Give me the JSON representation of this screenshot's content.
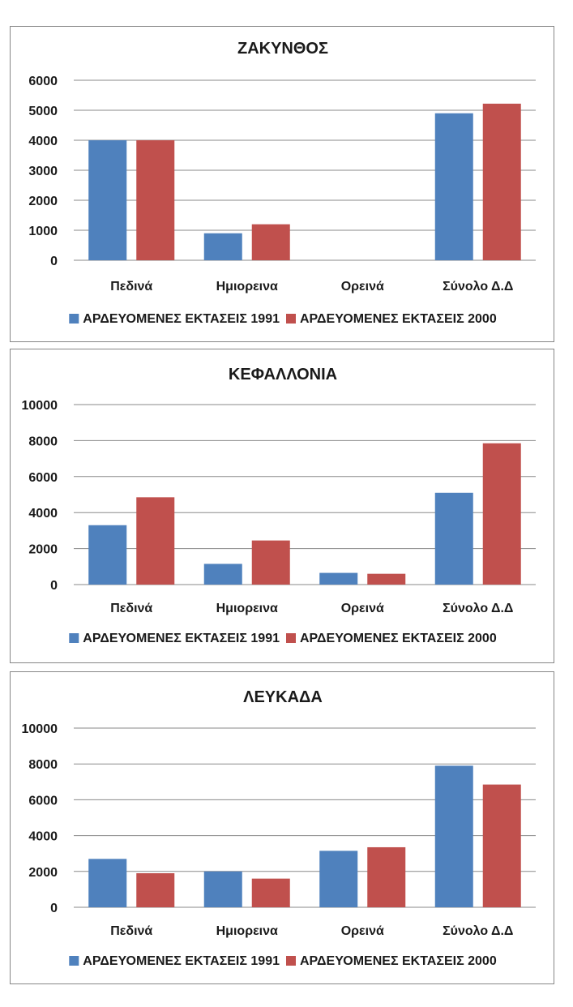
{
  "chart_data": [
    {
      "type": "bar",
      "title": "ΖΑΚΥΝΘΟΣ",
      "categories": [
        "Πεδινά",
        "Ημιορεινα",
        "Ορεινά",
        "Σύνολο Δ.Δ"
      ],
      "series": [
        {
          "name": "ΑΡΔΕΥΟΜΕΝΕΣ ΕΚΤΑΣΕΙΣ 1991",
          "color": "#4f81bd",
          "values": [
            4000,
            900,
            0,
            4900
          ]
        },
        {
          "name": "ΑΡΔΕΥΟΜΕΝΕΣ ΕΚΤΑΣΕΙΣ 2000",
          "color": "#c0504d",
          "values": [
            4000,
            1200,
            0,
            5220
          ]
        }
      ],
      "ylim": [
        0,
        6000
      ],
      "yticks": [
        0,
        1000,
        2000,
        3000,
        4000,
        5000,
        6000
      ],
      "legend": "bottom"
    },
    {
      "type": "bar",
      "title": "ΚΕΦΑΛΛΟΝΙΑ",
      "categories": [
        "Πεδινά",
        "Ημιορεινα",
        "Ορεινά",
        "Σύνολο Δ.Δ"
      ],
      "series": [
        {
          "name": "ΑΡΔΕΥΟΜΕΝΕΣ ΕΚΤΑΣΕΙΣ 1991",
          "color": "#4f81bd",
          "values": [
            3300,
            1150,
            650,
            5100
          ]
        },
        {
          "name": "ΑΡΔΕΥΟΜΕΝΕΣ ΕΚΤΑΣΕΙΣ 2000",
          "color": "#c0504d",
          "values": [
            4850,
            2450,
            600,
            7850
          ]
        }
      ],
      "ylim": [
        0,
        10000
      ],
      "yticks": [
        0,
        2000,
        4000,
        6000,
        8000,
        10000
      ],
      "legend": "bottom"
    },
    {
      "type": "bar",
      "title": "ΛΕΥΚΑΔΑ",
      "categories": [
        "Πεδινά",
        "Ημιορεινα",
        "Ορεινά",
        "Σύνολο Δ.Δ"
      ],
      "series": [
        {
          "name": "ΑΡΔΕΥΟΜΕΝΕΣ ΕΚΤΑΣΕΙΣ 1991",
          "color": "#4f81bd",
          "values": [
            2700,
            2000,
            3150,
            7900
          ]
        },
        {
          "name": "ΑΡΔΕΥΟΜΕΝΕΣ ΕΚΤΑΣΕΙΣ 2000",
          "color": "#c0504d",
          "values": [
            1900,
            1600,
            3350,
            6850
          ]
        }
      ],
      "ylim": [
        0,
        10000
      ],
      "yticks": [
        0,
        2000,
        4000,
        6000,
        8000,
        10000
      ],
      "legend": "bottom"
    }
  ]
}
